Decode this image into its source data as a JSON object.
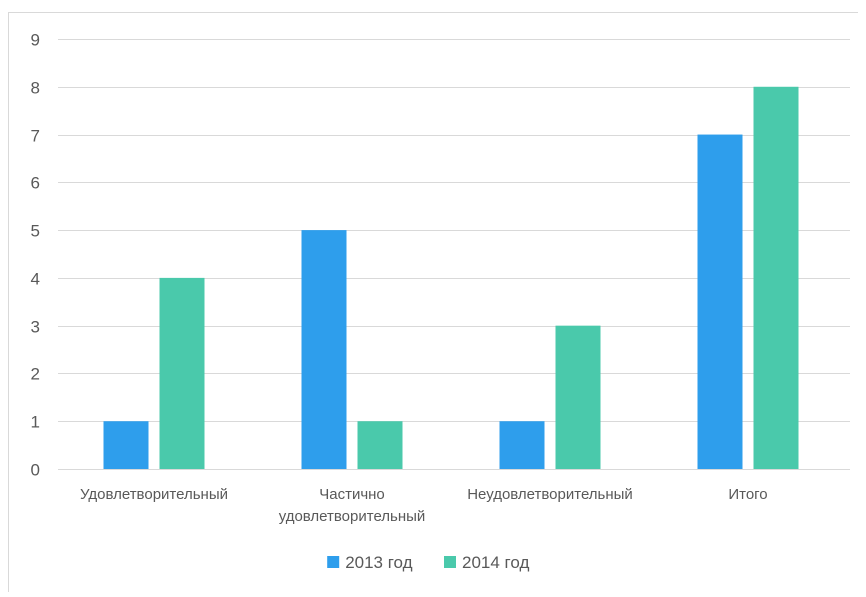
{
  "chart_data": {
    "type": "bar",
    "categories": [
      [
        "Удовлетворительный"
      ],
      [
        "Частично",
        "удовлетворительный"
      ],
      [
        "Неудовлетворительный"
      ],
      [
        "Итого"
      ]
    ],
    "series": [
      {
        "name": "2013 год",
        "values": [
          1,
          5,
          1,
          7
        ],
        "color": "#2e9eec"
      },
      {
        "name": "2014 год",
        "values": [
          4,
          1,
          3,
          8
        ],
        "color": "#4ac9ab"
      }
    ],
    "y_ticks": [
      0,
      1,
      2,
      3,
      4,
      5,
      6,
      7,
      8,
      9
    ],
    "ylim": [
      0,
      9
    ],
    "grid": true,
    "legend_position": "bottom",
    "colors": {
      "grid": "#d9d9d9",
      "axis_text": "#595959"
    }
  }
}
